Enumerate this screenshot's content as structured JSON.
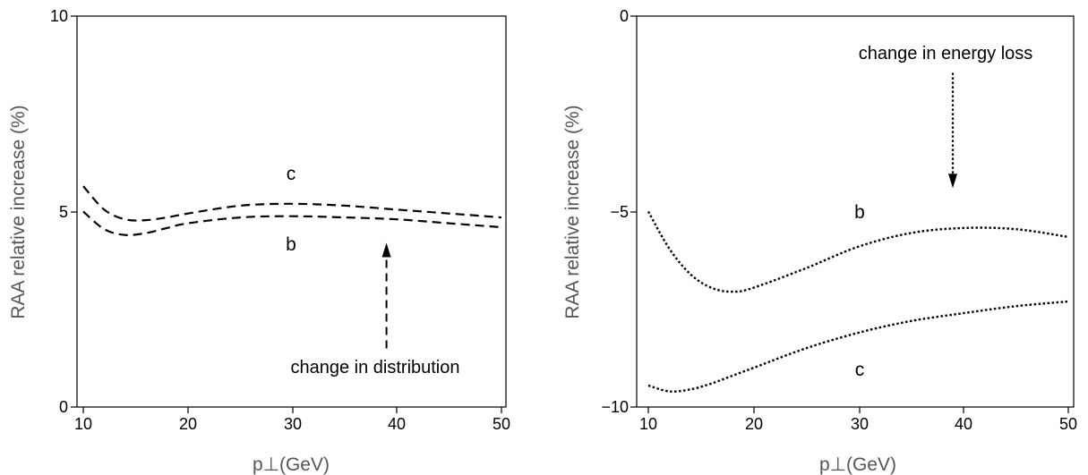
{
  "chart_data": [
    {
      "type": "line",
      "xlabel": "p⊥(GeV)",
      "ylabel": "RAA relative increase (%)",
      "xlim": [
        10,
        50
      ],
      "ylim": [
        0,
        10
      ],
      "xticks": [
        "10",
        "20",
        "30",
        "40",
        "50"
      ],
      "yticks": [
        "0",
        "5",
        "10"
      ],
      "grid": false,
      "line_style": "dashed",
      "series": [
        {
          "name": "c",
          "x": [
            10,
            12,
            14,
            16,
            18,
            20,
            25,
            30,
            35,
            40,
            45,
            50
          ],
          "y": [
            5.65,
            5.05,
            4.8,
            4.78,
            4.85,
            4.95,
            5.15,
            5.2,
            5.15,
            5.05,
            4.95,
            4.85
          ]
        },
        {
          "name": "b",
          "x": [
            10,
            12,
            14,
            16,
            18,
            20,
            25,
            30,
            35,
            40,
            45,
            50
          ],
          "y": [
            5.0,
            4.55,
            4.4,
            4.45,
            4.58,
            4.7,
            4.85,
            4.88,
            4.85,
            4.8,
            4.7,
            4.6
          ]
        }
      ],
      "annotations": [
        {
          "text": "change in distribution",
          "arrow_x": 39,
          "arrow_from_y": 1.5,
          "arrow_to_y": 4.2
        }
      ]
    },
    {
      "type": "line",
      "xlabel": "p⊥(GeV)",
      "ylabel": "RAA relative increase (%)",
      "xlim": [
        10,
        50
      ],
      "ylim": [
        -10,
        0
      ],
      "xticks": [
        "10",
        "20",
        "30",
        "40",
        "50"
      ],
      "yticks": [
        "0",
        "−5",
        "−10"
      ],
      "grid": false,
      "line_style": "dotted",
      "series": [
        {
          "name": "b",
          "x": [
            10,
            12,
            14,
            16,
            18,
            20,
            25,
            30,
            35,
            40,
            45,
            50
          ],
          "y": [
            -5.0,
            -5.95,
            -6.6,
            -6.95,
            -7.05,
            -6.95,
            -6.45,
            -5.9,
            -5.55,
            -5.42,
            -5.45,
            -5.65
          ]
        },
        {
          "name": "c",
          "x": [
            10,
            12,
            14,
            16,
            18,
            20,
            25,
            30,
            35,
            40,
            45,
            50
          ],
          "y": [
            -9.45,
            -9.6,
            -9.55,
            -9.4,
            -9.2,
            -9.0,
            -8.5,
            -8.1,
            -7.8,
            -7.6,
            -7.42,
            -7.3
          ]
        }
      ],
      "annotations": [
        {
          "text": "change in energy loss",
          "arrow_x": 39,
          "arrow_from_y": -1.45,
          "arrow_to_y": -4.4
        }
      ]
    }
  ]
}
